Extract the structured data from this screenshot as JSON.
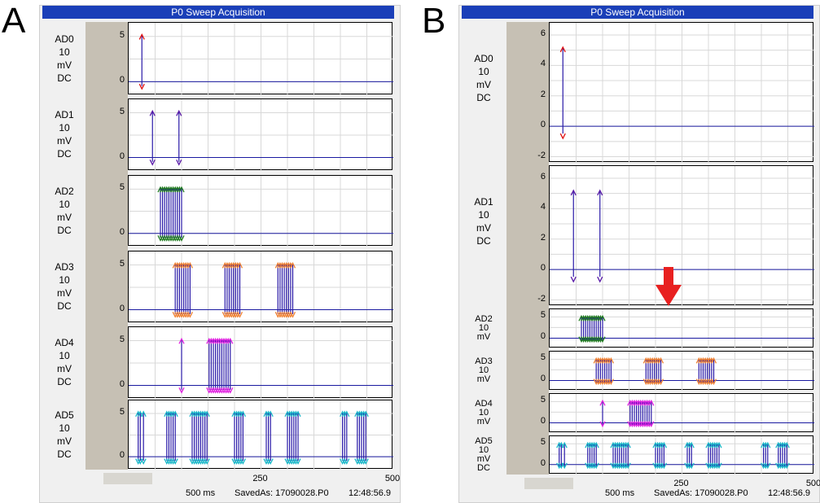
{
  "panels": [
    {
      "letter": "A",
      "title": "P0 Sweep Acquisition",
      "channels": [
        {
          "name": "AD0",
          "scale": "10",
          "unit": "mV",
          "coupling": "DC",
          "yticks": [
            0,
            5
          ]
        },
        {
          "name": "AD1",
          "scale": "10",
          "unit": "mV",
          "coupling": "DC",
          "yticks": [
            0,
            5
          ]
        },
        {
          "name": "AD2",
          "scale": "10",
          "unit": "mV",
          "coupling": "DC",
          "yticks": [
            0,
            5
          ]
        },
        {
          "name": "AD3",
          "scale": "10",
          "unit": "mV",
          "coupling": "DC",
          "yticks": [
            0,
            5
          ]
        },
        {
          "name": "AD4",
          "scale": "10",
          "unit": "mV",
          "coupling": "DC",
          "yticks": [
            0,
            5
          ]
        },
        {
          "name": "AD5",
          "scale": "10",
          "unit": "mV",
          "coupling": "DC",
          "yticks": [
            0,
            5
          ]
        }
      ],
      "xticks": [
        "0",
        "250",
        "500"
      ],
      "status": {
        "duration": "500 ms",
        "saved_as": "SavedAs: 17090028.P0",
        "time": "12:48:56.9"
      }
    },
    {
      "letter": "B",
      "title": "P0 Sweep Acquisition",
      "channels": [
        {
          "name": "AD0",
          "scale": "10",
          "unit": "mV",
          "coupling": "DC",
          "yticks": [
            -2,
            0,
            2,
            4,
            6
          ]
        },
        {
          "name": "AD1",
          "scale": "10",
          "unit": "mV",
          "coupling": "DC",
          "yticks": [
            -2,
            0,
            2,
            4,
            6
          ]
        },
        {
          "name": "AD2",
          "scale": "10",
          "unit": "mV",
          "coupling": "",
          "yticks": [
            0,
            5
          ]
        },
        {
          "name": "AD3",
          "scale": "10",
          "unit": "mV",
          "coupling": "",
          "yticks": [
            0,
            5
          ]
        },
        {
          "name": "AD4",
          "scale": "10",
          "unit": "mV",
          "coupling": "",
          "yticks": [
            0,
            5
          ]
        },
        {
          "name": "AD5",
          "scale": "10",
          "unit": "mV",
          "coupling": "DC",
          "yticks": [
            0,
            5
          ]
        }
      ],
      "xticks": [
        "0",
        "250",
        "500"
      ],
      "status": {
        "duration": "500 ms",
        "saved_as": "SavedAs: 17090028.P0",
        "time": "12:48:56.9"
      }
    }
  ],
  "spike_colors": [
    "#e01010",
    "#5a1aa8",
    "#1e7a1e",
    "#f08030",
    "#e020e0",
    "#18b8c8"
  ],
  "chart_data": {
    "type": "line",
    "x_range": [
      0,
      500
    ],
    "x_unit": "ms",
    "spike_times_ms": {
      "AD0": [
        25
      ],
      "AD1": [
        45,
        95
      ],
      "AD2": [
        60,
        64,
        68,
        72,
        76,
        80,
        84,
        88,
        92,
        96,
        100
      ],
      "AD3": [
        88,
        92,
        96,
        100,
        104,
        108,
        112,
        116,
        182,
        186,
        190,
        194,
        198,
        202,
        206,
        210,
        282,
        286,
        290,
        294,
        298,
        302,
        306,
        310
      ],
      "AD4": [
        100,
        152,
        156,
        160,
        164,
        168,
        172,
        176,
        180,
        184,
        188,
        192
      ],
      "AD5": [
        18,
        22,
        28,
        72,
        76,
        80,
        84,
        88,
        120,
        124,
        128,
        132,
        136,
        140,
        144,
        148,
        200,
        204,
        208,
        212,
        216,
        260,
        264,
        268,
        300,
        304,
        308,
        312,
        316,
        320,
        404,
        408,
        412,
        432,
        436,
        440,
        444,
        448
      ]
    }
  }
}
